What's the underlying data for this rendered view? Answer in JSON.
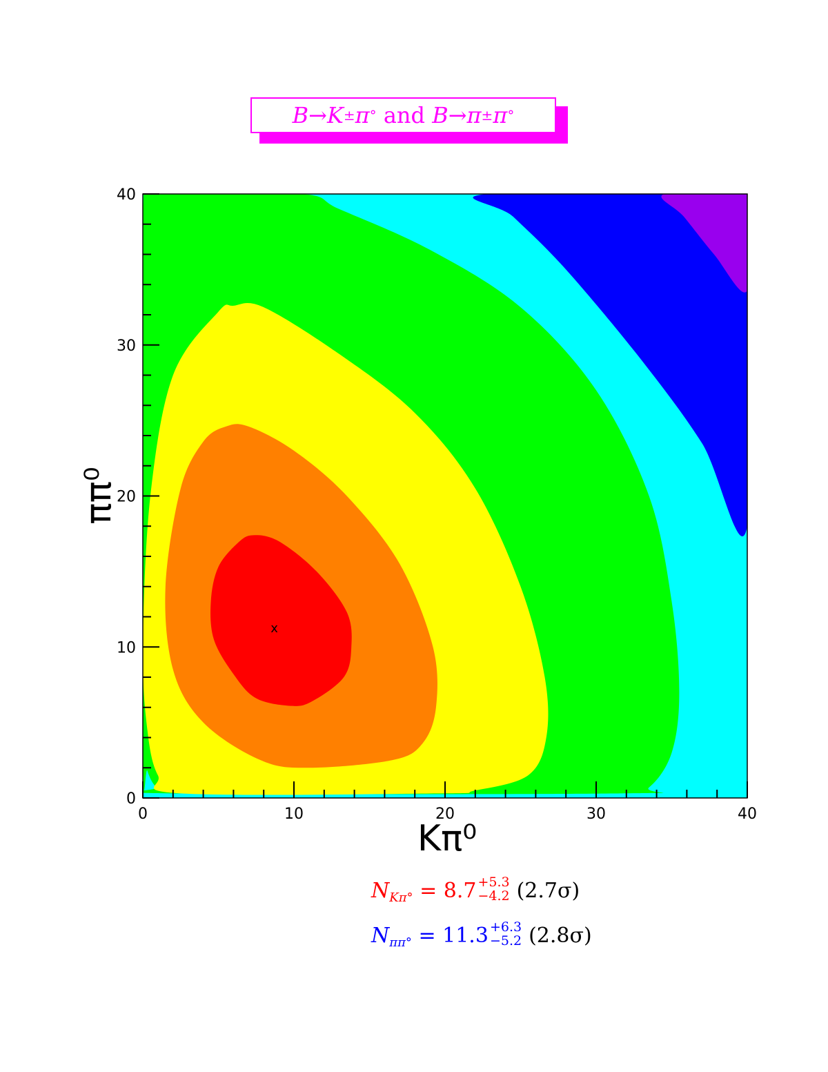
{
  "title": {
    "parts": [
      "B",
      "→",
      "K",
      "±",
      "π",
      "°",
      " and ",
      "B",
      "→",
      "π",
      "±",
      "π",
      "°"
    ]
  },
  "chart_data": {
    "type": "contour",
    "xlabel": "Kπ⁰",
    "ylabel": "ππ⁰",
    "xlim": [
      0,
      40
    ],
    "ylim": [
      0,
      40
    ],
    "x_ticks": [
      "0",
      "10",
      "20",
      "30",
      "40"
    ],
    "y_ticks": [
      "0",
      "10",
      "20",
      "30",
      "40"
    ],
    "best_fit": {
      "x": 8.7,
      "y": 11.3,
      "marker": "x"
    },
    "levels": [
      {
        "color": "#ff0000"
      },
      {
        "color": "#ff8000"
      },
      {
        "color": "#ffff00"
      },
      {
        "color": "#00ff00"
      },
      {
        "color": "#00ffff"
      },
      {
        "color": "#0000ff"
      },
      {
        "color": "#9900ee"
      }
    ],
    "contours": [
      {
        "color": "#00ffff",
        "points": [
          [
            0,
            0.3
          ],
          [
            0,
            40
          ],
          [
            10.5,
            40
          ],
          [
            13,
            39
          ],
          [
            19,
            36.3
          ],
          [
            25,
            32.5
          ],
          [
            30,
            27
          ],
          [
            33.5,
            20
          ],
          [
            35,
            13
          ],
          [
            35.5,
            7
          ],
          [
            35,
            3
          ],
          [
            33.5,
            0.7
          ],
          [
            31.7,
            0.3
          ]
        ]
      },
      {
        "color": "#00ff00",
        "points": [
          [
            0,
            3.6
          ],
          [
            0,
            38.5
          ],
          [
            1.5,
            40
          ],
          [
            10.5,
            40
          ],
          [
            13,
            39
          ],
          [
            19,
            36.3
          ],
          [
            25,
            32.5
          ],
          [
            30,
            27
          ],
          [
            33.5,
            20
          ],
          [
            35,
            13
          ],
          [
            35.5,
            7
          ],
          [
            35,
            3
          ],
          [
            33.5,
            0.7
          ],
          [
            31.7,
            0.3
          ],
          [
            1.8,
            0.3
          ],
          [
            0.9,
            0.7
          ],
          [
            0.3,
            1.8
          ]
        ]
      },
      {
        "color": "#ffff00",
        "points": [
          [
            0,
            10
          ],
          [
            0.5,
            20
          ],
          [
            2,
            28
          ],
          [
            5,
            32.2
          ],
          [
            6,
            32.6
          ],
          [
            8,
            32.5
          ],
          [
            13,
            29.4
          ],
          [
            18,
            25.5
          ],
          [
            22,
            20.5
          ],
          [
            25,
            14
          ],
          [
            26.6,
            8
          ],
          [
            26.7,
            4
          ],
          [
            25.5,
            1.5
          ],
          [
            22,
            0.5
          ],
          [
            19.5,
            0.3
          ],
          [
            2.5,
            0.3
          ],
          [
            1,
            1.5
          ],
          [
            0.3,
            4.5
          ]
        ]
      },
      {
        "color": "#ff8000",
        "points": [
          [
            1.5,
            14
          ],
          [
            2.5,
            20.5
          ],
          [
            4,
            23.6
          ],
          [
            5.5,
            24.6
          ],
          [
            7,
            24.6
          ],
          [
            10,
            23
          ],
          [
            13.5,
            20
          ],
          [
            17,
            15.5
          ],
          [
            19.2,
            10
          ],
          [
            19.4,
            6
          ],
          [
            18.5,
            3.6
          ],
          [
            16.5,
            2.5
          ],
          [
            11,
            2
          ],
          [
            7.8,
            2.5
          ],
          [
            4,
            5
          ],
          [
            2,
            8.5
          ]
        ]
      },
      {
        "color": "#ff0000",
        "points": [
          [
            4.5,
            13
          ],
          [
            5,
            15.3
          ],
          [
            6.3,
            16.9
          ],
          [
            7.3,
            17.4
          ],
          [
            9,
            17
          ],
          [
            11.5,
            15
          ],
          [
            13.5,
            12.3
          ],
          [
            13.8,
            10
          ],
          [
            13.3,
            8
          ],
          [
            11.2,
            6.4
          ],
          [
            9.8,
            6.1
          ],
          [
            7.5,
            6.6
          ],
          [
            6,
            8.2
          ],
          [
            4.7,
            10.5
          ]
        ]
      },
      {
        "color": "#0000ff",
        "points": [
          [
            22.8,
            40
          ],
          [
            40,
            40
          ],
          [
            40,
            18
          ],
          [
            37,
            23.5
          ],
          [
            33,
            29
          ],
          [
            28,
            35
          ],
          [
            24.5,
            38.5
          ]
        ]
      },
      {
        "color": "#9900ee",
        "points": [
          [
            34.5,
            40
          ],
          [
            40,
            40
          ],
          [
            40,
            33.6
          ],
          [
            37.8,
            36
          ],
          [
            35.8,
            38.5
          ]
        ]
      }
    ]
  },
  "results": [
    {
      "symbol": "N",
      "sub": "Kπ°",
      "eq": " = 8.7",
      "up": "+5.3",
      "down": "−4.2",
      "sig": "(2.7σ)",
      "color": "#ff0000"
    },
    {
      "symbol": "N",
      "sub": "ππ°",
      "eq": " = 11.3",
      "up": "+6.3",
      "down": "−5.2",
      "sig": "(2.8σ)",
      "color": "#0000ff"
    }
  ]
}
